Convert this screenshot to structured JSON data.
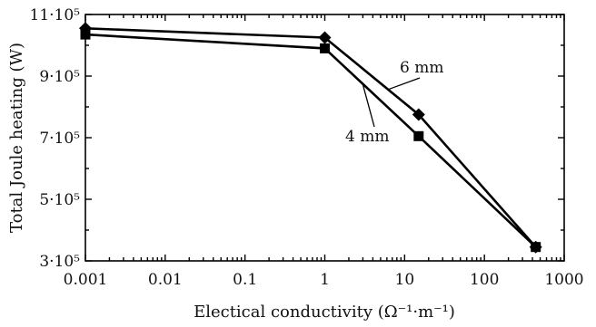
{
  "chart_data": {
    "type": "line",
    "title": "",
    "xlabel": "Electical conductivity (Ω⁻¹·m⁻¹)",
    "ylabel": "Total Joule heating (W)",
    "x_scale": "log",
    "xlim": [
      0.001,
      1000
    ],
    "ylim": [
      300000,
      1100000
    ],
    "grid": false,
    "x_ticks": [
      0.001,
      0.01,
      0.1,
      1,
      10,
      100,
      1000
    ],
    "x_tick_labels": [
      "0.001",
      "0.01",
      "0.1",
      "1",
      "10",
      "100",
      "1000"
    ],
    "y_ticks": [
      300000,
      500000,
      700000,
      900000,
      1100000
    ],
    "y_tick_labels": [
      "3·10⁵",
      "5·10⁵",
      "7·10⁵",
      "9·10⁵",
      "11·10⁵"
    ],
    "series": [
      {
        "name": "6 mm",
        "marker": "diamond",
        "x": [
          0.001,
          1,
          15,
          440
        ],
        "y": [
          1055000,
          1025000,
          775000,
          345000
        ]
      },
      {
        "name": "4 mm",
        "marker": "square",
        "x": [
          0.001,
          1,
          15,
          440
        ],
        "y": [
          1035000,
          990000,
          705000,
          345000
        ]
      }
    ],
    "annotations": [
      {
        "text": "6 mm",
        "series": "6 mm"
      },
      {
        "text": "4 mm",
        "series": "4 mm"
      }
    ]
  }
}
